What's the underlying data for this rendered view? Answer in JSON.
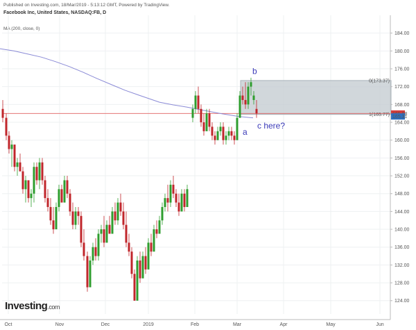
{
  "header": {
    "published": "Published on Investing.com, 18/Mar/2019 - 5:13:12 GMT, Powered by TradingView.",
    "symbol": "Facebook Inc, United States, NASDAQ:FB, D",
    "indicator": "MA (200, close, 0)"
  },
  "logo": {
    "brand": "Investing",
    "suffix": ".com"
  },
  "colors": {
    "up": "#2e9d2e",
    "down": "#c0262b",
    "ma": "#8a8ad6",
    "hline": "#e06060",
    "box": "#c6cdd2"
  },
  "chart_data": {
    "type": "candlestick",
    "ylim": [
      121,
      188
    ],
    "y_ticks": [
      "184.00",
      "180.00",
      "176.00",
      "172.00",
      "168.00",
      "164.00",
      "160.00",
      "156.00",
      "152.00",
      "148.00",
      "144.00",
      "140.00",
      "136.00",
      "132.00",
      "128.00",
      "124.00"
    ],
    "x_ticks": [
      "Oct",
      "Nov",
      "Dec",
      "2019",
      "Feb",
      "Mar",
      "Apr",
      "May",
      "Jun"
    ],
    "price_tags": [
      {
        "label": "165.98",
        "value": 165.98,
        "color": "#d43b3b"
      },
      {
        "label": "165.31",
        "value": 165.31,
        "color": "#2e6fbf"
      }
    ],
    "moving_average": {
      "name": "MA (200, close, 0)",
      "points": [
        [
          0,
          180.5
        ],
        [
          20,
          180.0
        ],
        [
          40,
          179.3
        ],
        [
          60,
          178.6
        ],
        [
          80,
          177.6
        ],
        [
          100,
          176.5
        ],
        [
          120,
          175.2
        ],
        [
          140,
          173.8
        ],
        [
          160,
          172.5
        ],
        [
          180,
          171.2
        ],
        [
          200,
          170.1
        ],
        [
          215,
          169.3
        ],
        [
          230,
          168.5
        ],
        [
          250,
          167.9
        ],
        [
          270,
          167.4
        ],
        [
          290,
          166.8
        ],
        [
          300,
          166.5
        ],
        [
          320,
          165.9
        ],
        [
          345,
          165.3
        ],
        [
          365,
          165.0
        ]
      ]
    },
    "horizontal_line": {
      "value": 165.98
    },
    "fib_box": {
      "x_start": 347,
      "x_end": 564,
      "top": 173.37,
      "bottom": 165.77
    },
    "fib_labels": [
      {
        "text": "0(173.37)",
        "value": 173.37
      },
      {
        "text": "1(165.77)",
        "value": 165.77
      }
    ],
    "annotations": [
      {
        "text": "b",
        "x": 364,
        "value": 174.8
      },
      {
        "text": "a",
        "x": 350,
        "value": 161.2
      },
      {
        "text": "c here?",
        "x": 371,
        "value": 162.6
      }
    ],
    "candles": [
      [
        4,
        167,
        169,
        164,
        165
      ],
      [
        9,
        165,
        166,
        160,
        161
      ],
      [
        13,
        161,
        162,
        157,
        158
      ],
      [
        17,
        158,
        160,
        154,
        159
      ],
      [
        21,
        159,
        159,
        153,
        154
      ],
      [
        25,
        154,
        156,
        152,
        155
      ],
      [
        29,
        155,
        157,
        153,
        153
      ],
      [
        33,
        153,
        154,
        148,
        149
      ],
      [
        37,
        149,
        152,
        146,
        151
      ],
      [
        41,
        151,
        151,
        146,
        147
      ],
      [
        45,
        147,
        149,
        145,
        148
      ],
      [
        49,
        148,
        155,
        146,
        154
      ],
      [
        53,
        154,
        155,
        150,
        151
      ],
      [
        57,
        151,
        156,
        149,
        155
      ],
      [
        61,
        155,
        156,
        150,
        151
      ],
      [
        65,
        151,
        152,
        146,
        147
      ],
      [
        69,
        147,
        149,
        144,
        145
      ],
      [
        73,
        145,
        147,
        141,
        142
      ],
      [
        77,
        142,
        145,
        139,
        140
      ],
      [
        81,
        140,
        146,
        140,
        145
      ],
      [
        85,
        145,
        150,
        144,
        149
      ],
      [
        89,
        149,
        150,
        146,
        146
      ],
      [
        93,
        146,
        152,
        146,
        151
      ],
      [
        97,
        151,
        152,
        147,
        148
      ],
      [
        101,
        148,
        149,
        143,
        144
      ],
      [
        105,
        144,
        146,
        140,
        141
      ],
      [
        109,
        141,
        145,
        140,
        144
      ],
      [
        113,
        144,
        145,
        141,
        143
      ],
      [
        117,
        143,
        144,
        136,
        137
      ],
      [
        121,
        137,
        140,
        133,
        134
      ],
      [
        126,
        134,
        135,
        126,
        127
      ],
      [
        130,
        127,
        134,
        127,
        133
      ],
      [
        134,
        133,
        137,
        132,
        136
      ],
      [
        138,
        136,
        138,
        133,
        134
      ],
      [
        142,
        134,
        140,
        133,
        139
      ],
      [
        146,
        139,
        141,
        137,
        140
      ],
      [
        150,
        140,
        143,
        136,
        137
      ],
      [
        154,
        137,
        142,
        137,
        141
      ],
      [
        158,
        141,
        143,
        139,
        139
      ],
      [
        162,
        139,
        145,
        139,
        144
      ],
      [
        166,
        144,
        146,
        141,
        142
      ],
      [
        170,
        142,
        147,
        141,
        146
      ],
      [
        174,
        146,
        148,
        143,
        144
      ],
      [
        178,
        144,
        146,
        140,
        141
      ],
      [
        182,
        141,
        144,
        136,
        137
      ],
      [
        186,
        137,
        139,
        134,
        135
      ],
      [
        190,
        135,
        136,
        129,
        130
      ],
      [
        194,
        130,
        131,
        124,
        124
      ],
      [
        198,
        124,
        134,
        124,
        133
      ],
      [
        202,
        133,
        135,
        128,
        129
      ],
      [
        206,
        129,
        135,
        129,
        134
      ],
      [
        210,
        134,
        136,
        130,
        131
      ],
      [
        214,
        131,
        138,
        131,
        137
      ],
      [
        218,
        137,
        139,
        134,
        135
      ],
      [
        222,
        135,
        141,
        135,
        140
      ],
      [
        226,
        140,
        142,
        138,
        139
      ],
      [
        230,
        139,
        143,
        139,
        142
      ],
      [
        234,
        142,
        146,
        141,
        145
      ],
      [
        238,
        145,
        148,
        144,
        147
      ],
      [
        242,
        147,
        150,
        144,
        146
      ],
      [
        246,
        146,
        151,
        145,
        150
      ],
      [
        250,
        150,
        152,
        147,
        148
      ],
      [
        254,
        148,
        149,
        145,
        146
      ],
      [
        258,
        146,
        148,
        143,
        144
      ],
      [
        262,
        144,
        149,
        144,
        148
      ],
      [
        266,
        148,
        149,
        144,
        145
      ],
      [
        270,
        145,
        150,
        145,
        149
      ],
      [
        278,
        165,
        168,
        164,
        167
      ],
      [
        282,
        167,
        171,
        166,
        170
      ],
      [
        286,
        170,
        172,
        166,
        167
      ],
      [
        290,
        167,
        168,
        163,
        164
      ],
      [
        294,
        164,
        166,
        161,
        162
      ],
      [
        298,
        162,
        167,
        162,
        166
      ],
      [
        302,
        166,
        167,
        162,
        163
      ],
      [
        306,
        163,
        164,
        160,
        161
      ],
      [
        310,
        161,
        162,
        159,
        160
      ],
      [
        314,
        160,
        163,
        160,
        162
      ],
      [
        318,
        162,
        164,
        161,
        163
      ],
      [
        322,
        163,
        164,
        159,
        160
      ],
      [
        326,
        160,
        162,
        159,
        161
      ],
      [
        330,
        161,
        163,
        160,
        162
      ],
      [
        334,
        162,
        163,
        160,
        161
      ],
      [
        338,
        161,
        162,
        159,
        160
      ],
      [
        342,
        160,
        166,
        160,
        165
      ],
      [
        346,
        165,
        171,
        165,
        170
      ],
      [
        350,
        170,
        172,
        168,
        169
      ],
      [
        354,
        169,
        173,
        167,
        168
      ],
      [
        358,
        168,
        173,
        167,
        172
      ],
      [
        362,
        172,
        174,
        170,
        173
      ],
      [
        366,
        169,
        171,
        168,
        170
      ],
      [
        370,
        167,
        169,
        165,
        166
      ]
    ]
  }
}
